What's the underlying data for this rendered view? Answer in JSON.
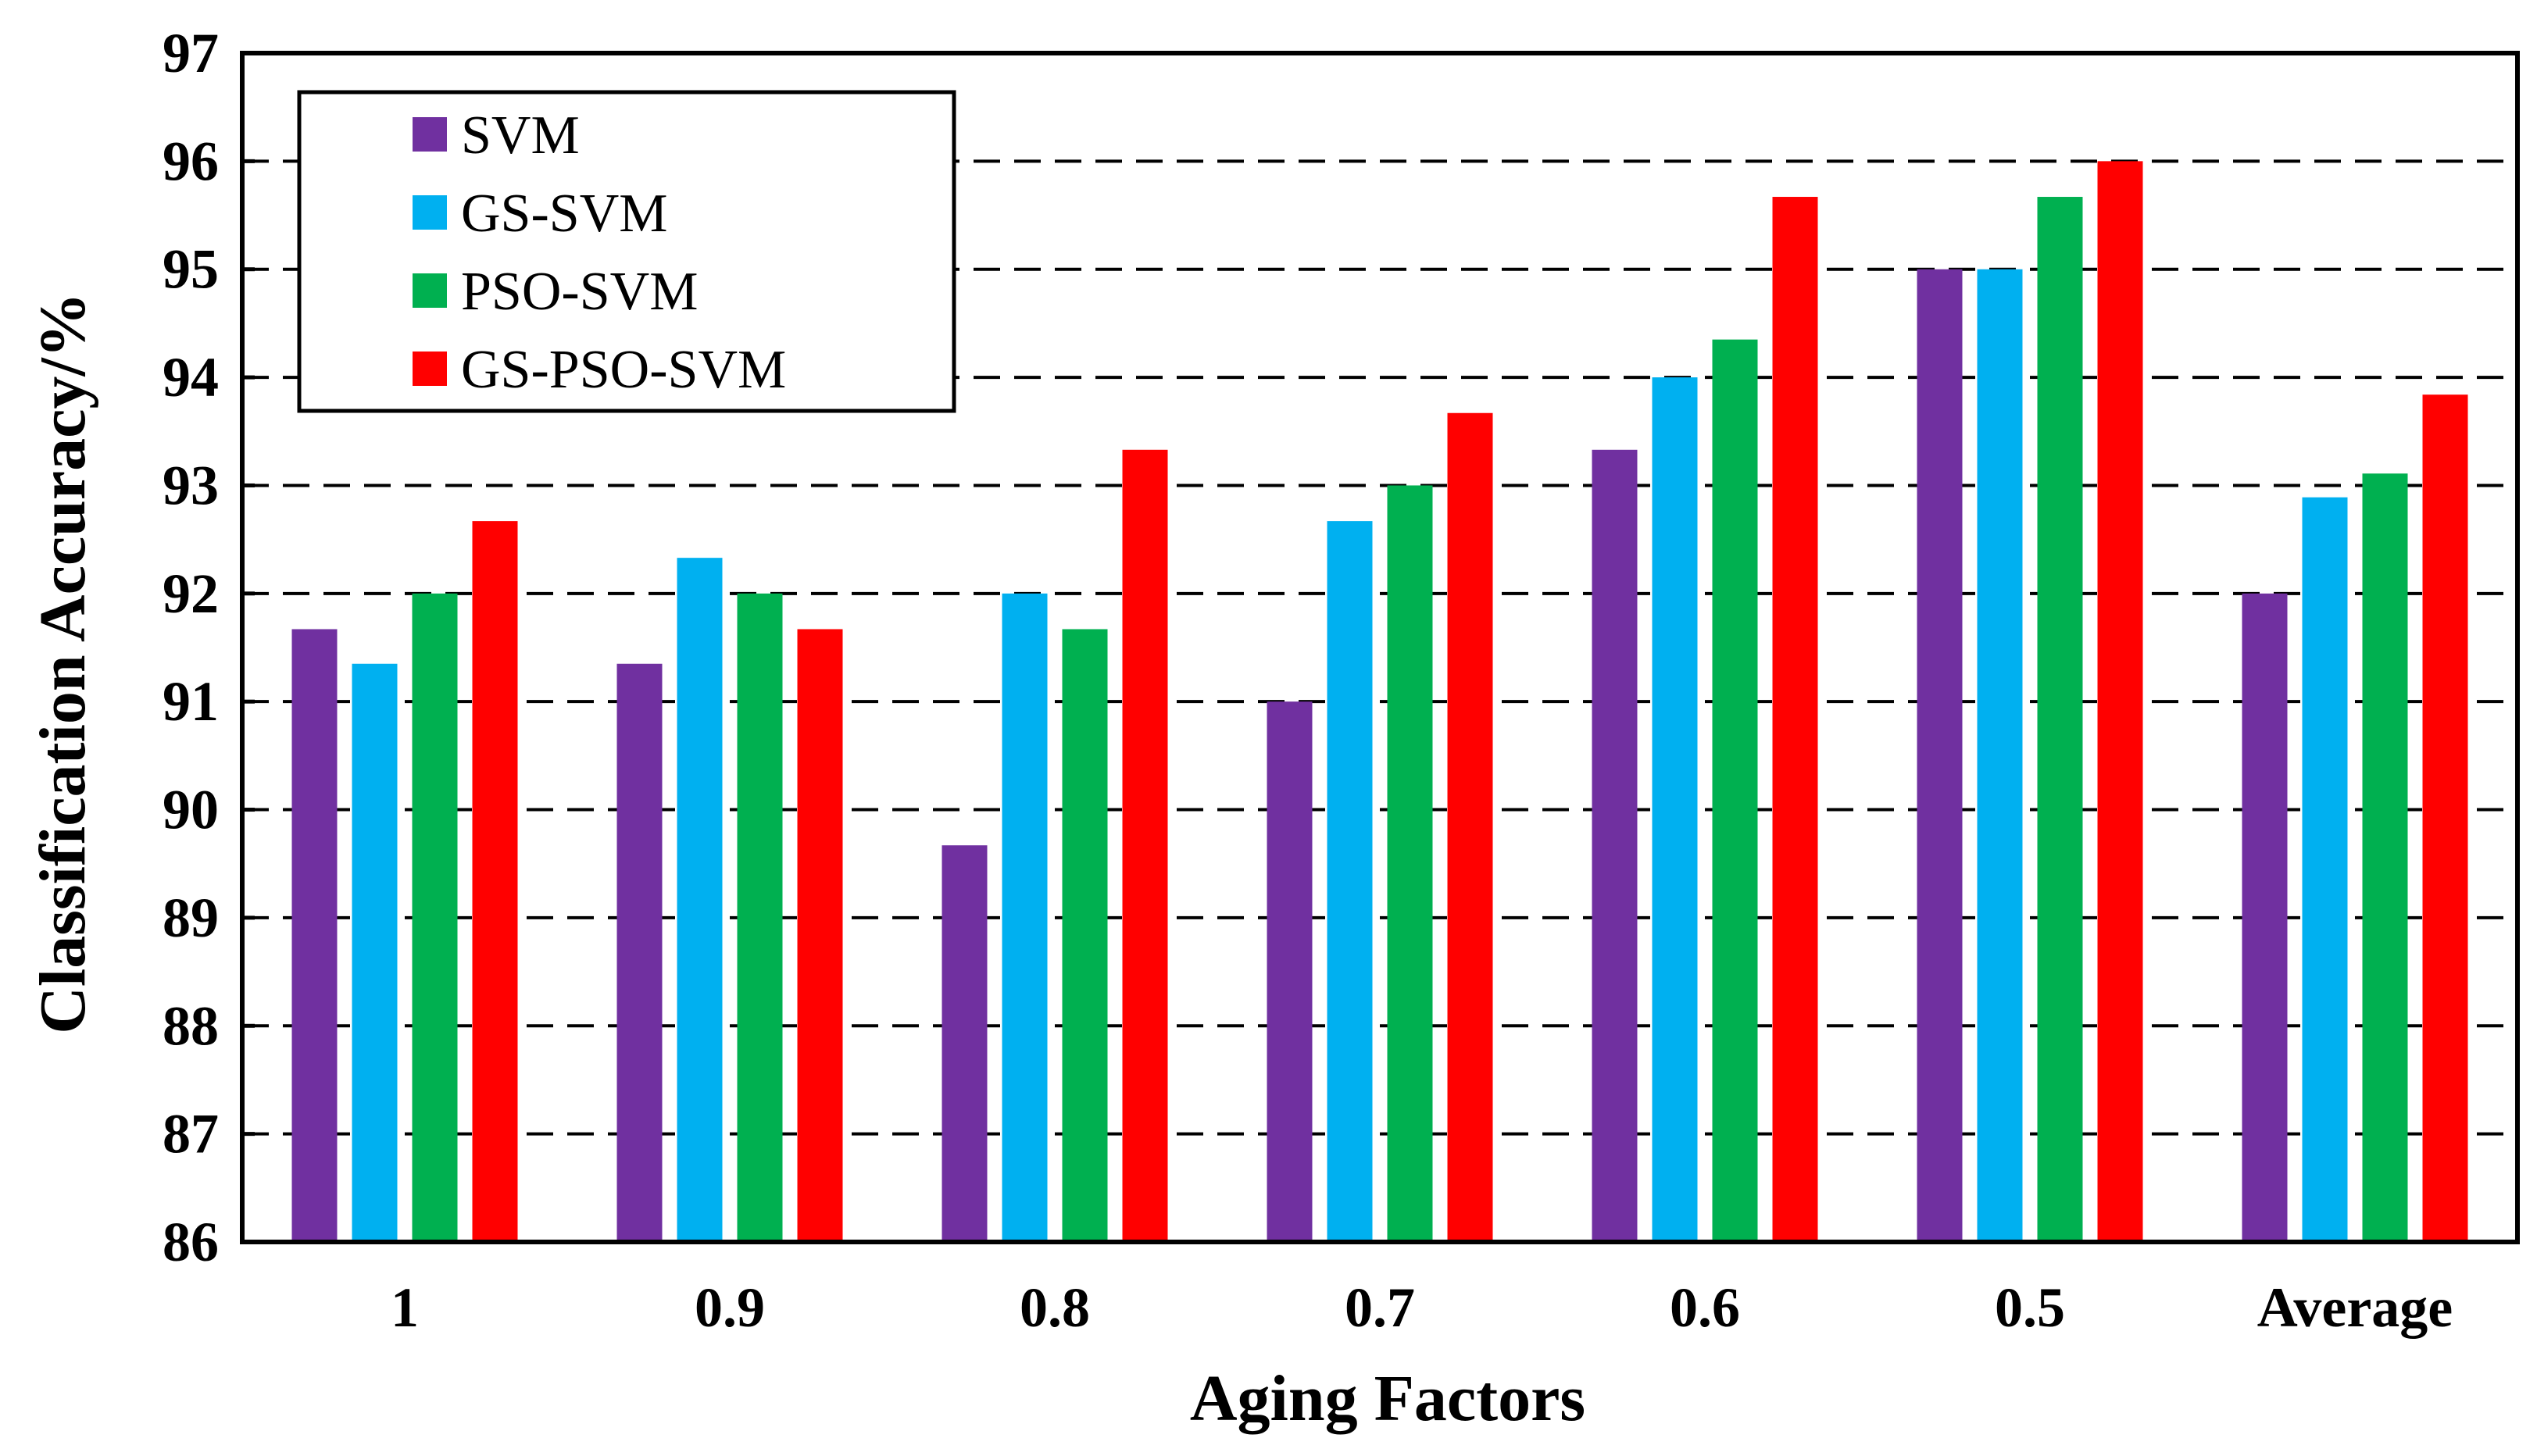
{
  "chart_data": {
    "type": "bar",
    "title": "",
    "xlabel": "Aging Factors",
    "ylabel": "Classification Accuracy/%",
    "ylim": [
      86,
      97
    ],
    "yticks": [
      86,
      87,
      88,
      89,
      90,
      91,
      92,
      93,
      94,
      95,
      96,
      97
    ],
    "grid": "dashed horizontal",
    "legend_position": "top-left",
    "categories": [
      "1",
      "0.9",
      "0.8",
      "0.7",
      "0.6",
      "0.5",
      "Average"
    ],
    "series": [
      {
        "name": "SVM",
        "color": "#7030A0",
        "values": [
          91.67,
          91.35,
          89.67,
          91.0,
          93.33,
          95.0,
          92.0
        ]
      },
      {
        "name": "GS-SVM",
        "color": "#00B0F0",
        "values": [
          91.35,
          92.33,
          92.0,
          92.67,
          94.0,
          95.0,
          92.89
        ]
      },
      {
        "name": "PSO-SVM",
        "color": "#00B050",
        "values": [
          92.0,
          92.0,
          91.67,
          93.0,
          94.35,
          95.67,
          93.11
        ]
      },
      {
        "name": "GS-PSO-SVM",
        "color": "#FF0000",
        "values": [
          92.67,
          91.67,
          93.33,
          93.67,
          95.67,
          96.0,
          93.84
        ]
      }
    ]
  }
}
